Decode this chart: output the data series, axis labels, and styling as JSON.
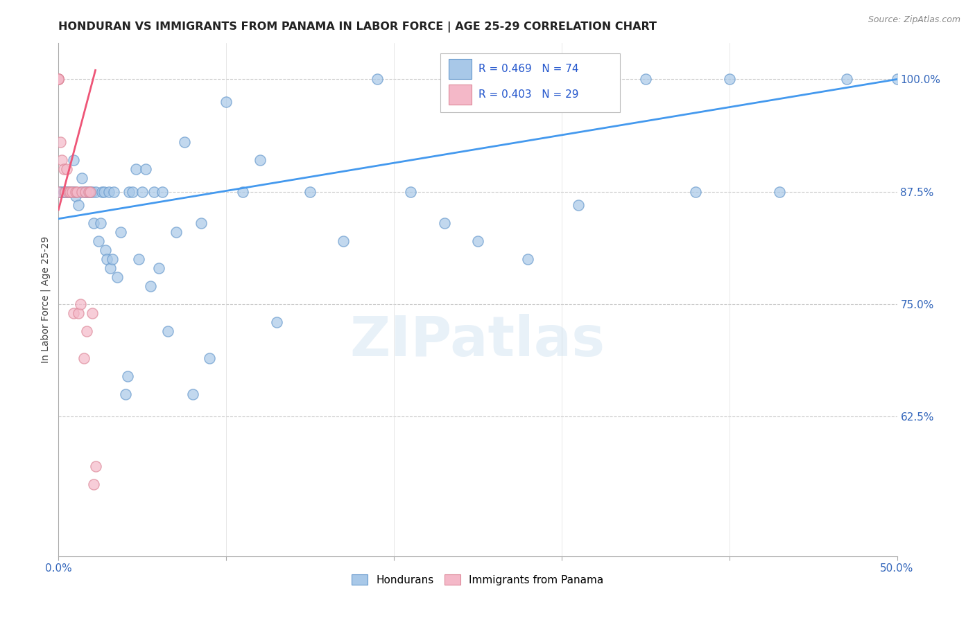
{
  "title": "HONDURAN VS IMMIGRANTS FROM PANAMA IN LABOR FORCE | AGE 25-29 CORRELATION CHART",
  "source": "Source: ZipAtlas.com",
  "ylabel": "In Labor Force | Age 25-29",
  "legend_blue_label": "Hondurans",
  "legend_pink_label": "Immigrants from Panama",
  "r_blue": 0.469,
  "n_blue": 74,
  "r_pink": 0.403,
  "n_pink": 29,
  "blue_color": "#a8c8e8",
  "pink_color": "#f4b8c8",
  "blue_edge_color": "#6699cc",
  "pink_edge_color": "#dd8899",
  "trendline_blue_color": "#4499ee",
  "trendline_pink_color": "#ee5577",
  "watermark": "ZIPatlas",
  "xmin": 0.0,
  "xmax": 0.5,
  "ymin": 0.47,
  "ymax": 1.04,
  "xtick_positions": [
    0.0,
    0.1,
    0.2,
    0.3,
    0.4,
    0.5
  ],
  "ytick_positions": [
    0.625,
    0.75,
    0.875,
    1.0
  ],
  "ytick_labels": [
    "62.5%",
    "75.0%",
    "87.5%",
    "100.0%"
  ],
  "blue_trendline_x": [
    0.0,
    0.5
  ],
  "blue_trendline_y": [
    0.845,
    1.0
  ],
  "pink_trendline_x": [
    0.0,
    0.022
  ],
  "pink_trendline_y": [
    0.855,
    1.01
  ],
  "blue_scatter_x": [
    0.001,
    0.001,
    0.003,
    0.003,
    0.004,
    0.004,
    0.005,
    0.006,
    0.006,
    0.007,
    0.008,
    0.009,
    0.009,
    0.01,
    0.01,
    0.012,
    0.013,
    0.014,
    0.015,
    0.016,
    0.017,
    0.018,
    0.019,
    0.02,
    0.021,
    0.022,
    0.024,
    0.025,
    0.026,
    0.027,
    0.028,
    0.029,
    0.03,
    0.031,
    0.032,
    0.033,
    0.035,
    0.037,
    0.04,
    0.041,
    0.042,
    0.044,
    0.046,
    0.048,
    0.05,
    0.052,
    0.055,
    0.057,
    0.06,
    0.062,
    0.065,
    0.07,
    0.075,
    0.08,
    0.085,
    0.09,
    0.1,
    0.11,
    0.12,
    0.13,
    0.15,
    0.17,
    0.19,
    0.21,
    0.23,
    0.25,
    0.28,
    0.31,
    0.35,
    0.38,
    0.4,
    0.43,
    0.47,
    0.5
  ],
  "blue_scatter_y": [
    0.875,
    0.875,
    0.875,
    0.875,
    0.875,
    0.875,
    0.875,
    0.875,
    0.875,
    0.875,
    0.875,
    0.875,
    0.91,
    0.87,
    0.875,
    0.86,
    0.875,
    0.89,
    0.875,
    0.875,
    0.875,
    0.875,
    0.875,
    0.875,
    0.84,
    0.875,
    0.82,
    0.84,
    0.875,
    0.875,
    0.81,
    0.8,
    0.875,
    0.79,
    0.8,
    0.875,
    0.78,
    0.83,
    0.65,
    0.67,
    0.875,
    0.875,
    0.9,
    0.8,
    0.875,
    0.9,
    0.77,
    0.875,
    0.79,
    0.875,
    0.72,
    0.83,
    0.93,
    0.65,
    0.84,
    0.69,
    0.975,
    0.875,
    0.91,
    0.73,
    0.875,
    0.82,
    1.0,
    0.875,
    0.84,
    0.82,
    0.8,
    0.86,
    1.0,
    0.875,
    1.0,
    0.875,
    1.0,
    1.0
  ],
  "pink_scatter_x": [
    0.0,
    0.0,
    0.0,
    0.0,
    0.0,
    0.0,
    0.0,
    0.001,
    0.002,
    0.003,
    0.004,
    0.005,
    0.006,
    0.007,
    0.008,
    0.009,
    0.01,
    0.011,
    0.012,
    0.013,
    0.014,
    0.015,
    0.016,
    0.017,
    0.018,
    0.019,
    0.02,
    0.021,
    0.022
  ],
  "pink_scatter_y": [
    1.0,
    1.0,
    1.0,
    1.0,
    1.0,
    1.0,
    0.875,
    0.93,
    0.91,
    0.9,
    0.875,
    0.9,
    0.875,
    0.875,
    0.875,
    0.74,
    0.875,
    0.875,
    0.74,
    0.75,
    0.875,
    0.69,
    0.875,
    0.72,
    0.875,
    0.875,
    0.74,
    0.55,
    0.57
  ]
}
